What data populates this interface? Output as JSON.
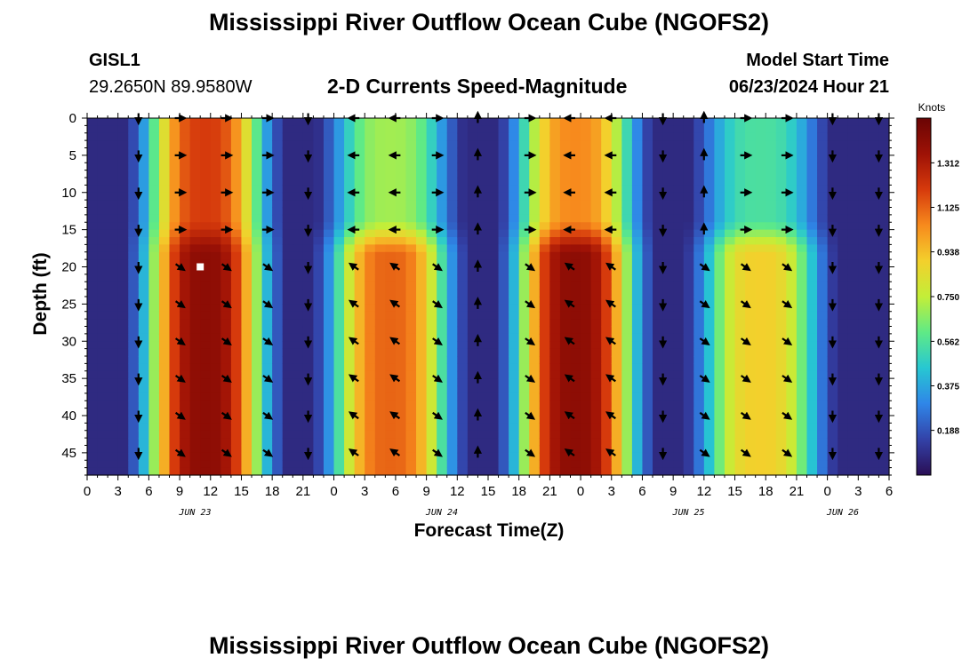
{
  "title": "Mississippi River Outflow Ocean Cube (NGOFS2)",
  "title_bottom": "Mississippi River Outflow Ocean Cube (NGOFS2)",
  "station": {
    "id": "GISL1",
    "coords": "29.2650N  89.9580W"
  },
  "subtitle": "2-D Currents Speed-Magnitude",
  "model": {
    "label": "Model Start Time",
    "start": "06/23/2024 Hour 21"
  },
  "colors": {
    "scale": [
      "#2a0e55",
      "#3342a8",
      "#2f86e8",
      "#27c7d2",
      "#5fea86",
      "#c3ee38",
      "#f3d02c",
      "#f78a1d",
      "#d63a0c",
      "#9e1206",
      "#6a0404"
    ]
  },
  "chart_data": {
    "type": "heatmap",
    "xlabel": "Forecast Time(Z)",
    "ylabel": "Depth (ft)",
    "x_ticks": [
      "0",
      "3",
      "6",
      "9",
      "12",
      "15",
      "18",
      "21",
      "0",
      "3",
      "6",
      "9",
      "12",
      "15",
      "18",
      "21",
      "0",
      "3",
      "6",
      "9",
      "12",
      "15",
      "18",
      "21",
      "0",
      "3",
      "6"
    ],
    "date_labels": [
      {
        "label": "JUN 23",
        "hour": 10.5
      },
      {
        "label": "JUN 24",
        "hour": 34.5
      },
      {
        "label": "JUN 25",
        "hour": 58.5
      },
      {
        "label": "JUN 26",
        "hour": 73.5
      }
    ],
    "xlim": [
      0,
      78
    ],
    "y_ticks": [
      0,
      5,
      10,
      15,
      20,
      25,
      30,
      35,
      40,
      45
    ],
    "ylim": [
      0,
      48
    ],
    "colorbar": {
      "title": "Knots",
      "range": [
        0,
        1.5
      ],
      "ticks": [
        "0.188",
        "0.375",
        "0.562",
        "0.750",
        "0.938",
        "1.125",
        "1.312"
      ]
    },
    "arrow_columns_hour": [
      5,
      9,
      13.5,
      17.5,
      21.5,
      26,
      30,
      34,
      38,
      43,
      47,
      51,
      56,
      60,
      64,
      68,
      72.5,
      77
    ],
    "arrow_depths_ft": [
      0,
      5,
      10,
      15,
      20,
      25,
      30,
      35,
      40,
      45
    ],
    "surface_peaks": [
      {
        "hour": 11.5,
        "speed": 1.2
      },
      {
        "hour": 29.5,
        "speed": 0.7
      },
      {
        "hour": 47.5,
        "speed": 1.05
      },
      {
        "hour": 65.5,
        "speed": 0.55
      }
    ],
    "deep_peaks": [
      {
        "hour": 11.5,
        "speed": 1.4
      },
      {
        "hour": 29.5,
        "speed": 1.12
      },
      {
        "hour": 47.5,
        "speed": 1.4
      },
      {
        "hour": 65.5,
        "speed": 0.9
      }
    ],
    "marker": {
      "hour": 11,
      "depth": 20
    }
  }
}
